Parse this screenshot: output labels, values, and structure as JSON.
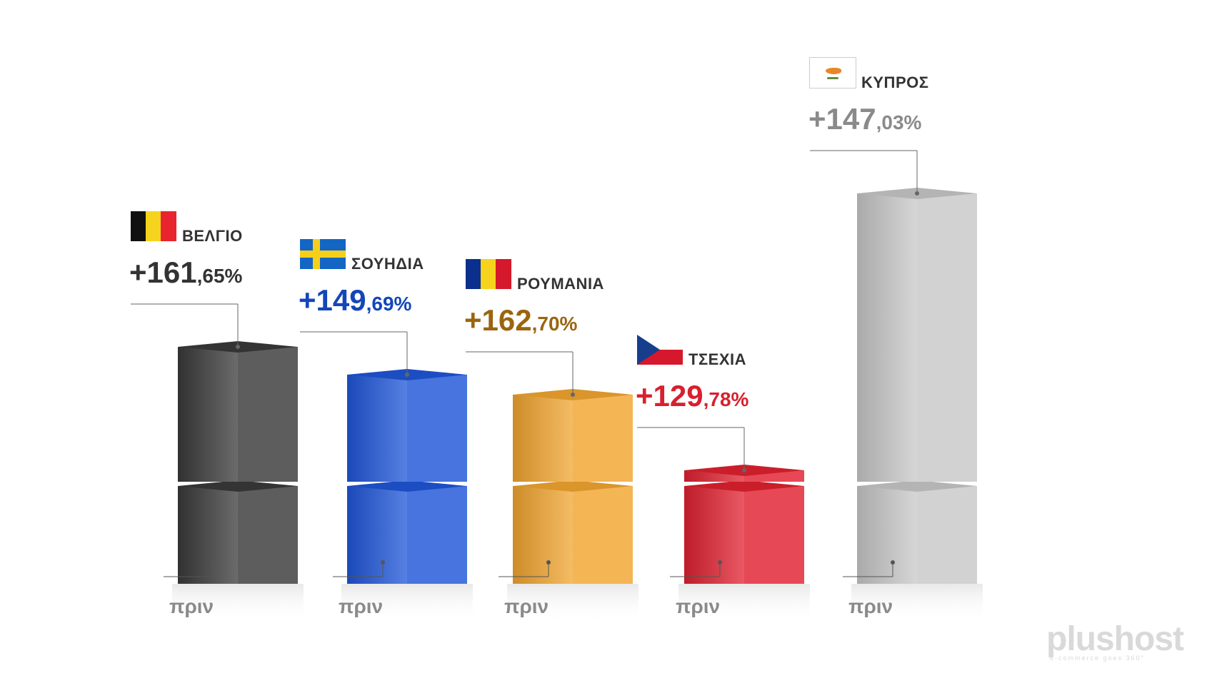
{
  "chart_data": {
    "type": "bar",
    "title": "",
    "before_label": "πριν",
    "categories": [
      "ΒΕΛΓΙΟ",
      "ΣΟΥΗΔΙΑ",
      "ΡΟΥΜΑΝΙΑ",
      "ΤΣΕΧΙΑ",
      "ΚΥΠΡΟΣ"
    ],
    "values": [
      161.65,
      149.69,
      162.7,
      129.78,
      147.03
    ],
    "value_labels": [
      {
        "int": "+161",
        "dec": ",65%"
      },
      {
        "int": "+149",
        "dec": ",69%"
      },
      {
        "int": "+162",
        "dec": ",70%"
      },
      {
        "int": "+129",
        "dec": ",78%"
      },
      {
        "int": "+147",
        "dec": ",03%"
      }
    ],
    "colors": [
      "#3a3a3a",
      "#1f56d8",
      "#f2a530",
      "#e02130",
      "#c8c8c8"
    ],
    "label_colors": [
      "#333333",
      "#1446b8",
      "#9a6510",
      "#d8202e",
      "#8a8a8a"
    ],
    "flags": [
      "belgium-flag",
      "sweden-flag",
      "romania-flag",
      "czechia-flag",
      "cyprus-flag"
    ]
  },
  "brand": {
    "name": "plushost",
    "tagline": "e-commerce goes 360°"
  }
}
